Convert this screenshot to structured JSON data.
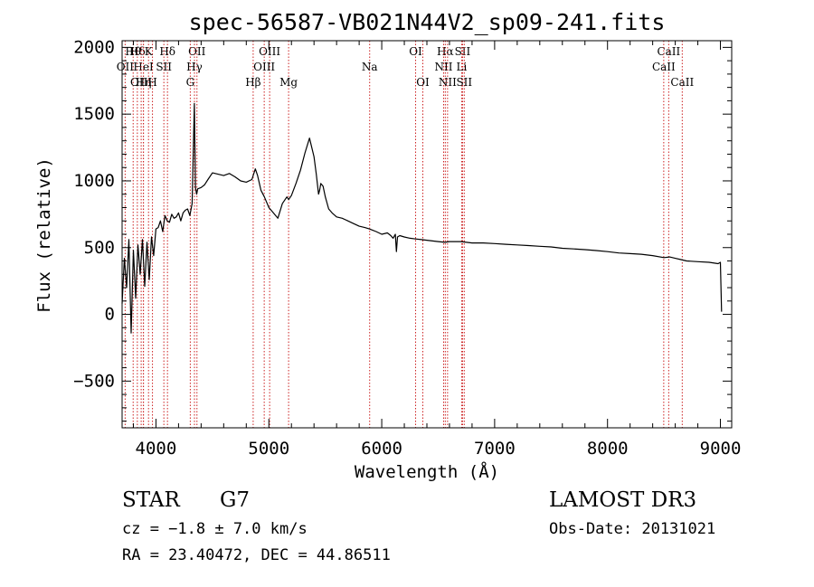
{
  "chart_data": {
    "type": "line",
    "title": "spec-56587-VB021N44V2_sp09-241.fits",
    "xlabel": "Wavelength (Å)",
    "ylabel": "Flux (relative)",
    "xlim": [
      3700,
      9100
    ],
    "ylim": [
      -850,
      2050
    ],
    "xticks": [
      {
        "value": 4000,
        "label": "4000"
      },
      {
        "value": 5000,
        "label": "5000"
      },
      {
        "value": 6000,
        "label": "6000"
      },
      {
        "value": 7000,
        "label": "7000"
      },
      {
        "value": 8000,
        "label": "8000"
      },
      {
        "value": 9000,
        "label": "9000"
      }
    ],
    "yticks": [
      {
        "value": -500,
        "label": "−500"
      },
      {
        "value": 0,
        "label": "0"
      },
      {
        "value": 500,
        "label": "500"
      },
      {
        "value": 1000,
        "label": "1000"
      },
      {
        "value": 1500,
        "label": "1500"
      },
      {
        "value": 2000,
        "label": "2000"
      }
    ],
    "series": [
      {
        "name": "spectrum",
        "x": [
          3700,
          3720,
          3740,
          3760,
          3780,
          3800,
          3820,
          3840,
          3860,
          3880,
          3900,
          3920,
          3940,
          3960,
          3980,
          4000,
          4020,
          4040,
          4060,
          4080,
          4100,
          4120,
          4140,
          4160,
          4180,
          4200,
          4220,
          4240,
          4260,
          4280,
          4300,
          4320,
          4340,
          4350,
          4360,
          4370,
          4400,
          4430,
          4460,
          4500,
          4550,
          4600,
          4650,
          4700,
          4750,
          4800,
          4850,
          4880,
          4900,
          4930,
          4960,
          5000,
          5040,
          5080,
          5120,
          5160,
          5175,
          5200,
          5240,
          5280,
          5320,
          5360,
          5400,
          5420,
          5440,
          5450,
          5460,
          5480,
          5500,
          5530,
          5560,
          5600,
          5650,
          5700,
          5750,
          5800,
          5850,
          5890,
          5950,
          6000,
          6050,
          6080,
          6100,
          6120,
          6130,
          6140,
          6160,
          6200,
          6250,
          6300,
          6350,
          6400,
          6450,
          6500,
          6560,
          6600,
          6650,
          6700,
          6750,
          6800,
          6900,
          7000,
          7100,
          7200,
          7300,
          7400,
          7500,
          7600,
          7700,
          7800,
          7900,
          8000,
          8100,
          8200,
          8300,
          8400,
          8500,
          8550,
          8600,
          8650,
          8700,
          8800,
          8900,
          8980,
          9000,
          9010
        ],
        "y": [
          80,
          420,
          200,
          560,
          -140,
          480,
          120,
          520,
          300,
          560,
          210,
          540,
          260,
          580,
          440,
          640,
          650,
          700,
          620,
          740,
          700,
          690,
          750,
          720,
          730,
          760,
          700,
          760,
          780,
          790,
          740,
          830,
          1580,
          950,
          900,
          940,
          950,
          970,
          1010,
          1060,
          1050,
          1040,
          1055,
          1030,
          1000,
          990,
          1010,
          1090,
          1040,
          930,
          880,
          800,
          760,
          720,
          830,
          880,
          860,
          890,
          980,
          1080,
          1210,
          1320,
          1180,
          1050,
          900,
          930,
          980,
          960,
          880,
          790,
          760,
          730,
          720,
          700,
          680,
          660,
          650,
          640,
          620,
          600,
          610,
          590,
          570,
          600,
          470,
          580,
          590,
          580,
          570,
          565,
          560,
          555,
          550,
          545,
          540,
          545,
          545,
          545,
          540,
          535,
          535,
          530,
          525,
          520,
          515,
          510,
          505,
          495,
          490,
          485,
          478,
          470,
          460,
          455,
          450,
          440,
          425,
          430,
          420,
          410,
          400,
          395,
          390,
          380,
          390,
          20
        ]
      }
    ],
    "line_markers": [
      {
        "label": "Hθ",
        "x": 3798,
        "row": 1
      },
      {
        "label": "Hδ",
        "x": 3835,
        "row": 1
      },
      {
        "label": "K",
        "x": 3934,
        "row": 1
      },
      {
        "label": "Hδ",
        "x": 4102,
        "row": 1
      },
      {
        "label": "OII",
        "x": 3727,
        "row": 2
      },
      {
        "label": "HeI",
        "x": 3889,
        "row": 2
      },
      {
        "label": "SII",
        "x": 4070,
        "row": 2
      },
      {
        "label": "OIII",
        "x": 3869,
        "row": 3
      },
      {
        "label": "Hη",
        "x": 3889,
        "row": 3
      },
      {
        "label": "H",
        "x": 3969,
        "row": 3
      },
      {
        "label": "OII",
        "x": 4363,
        "row": 1
      },
      {
        "label": "Hγ",
        "x": 4341,
        "row": 2
      },
      {
        "label": "G",
        "x": 4304,
        "row": 3
      },
      {
        "label": "OIII",
        "x": 5007,
        "row": 1
      },
      {
        "label": "OIII",
        "x": 4959,
        "row": 2
      },
      {
        "label": "Hβ",
        "x": 4861,
        "row": 3
      },
      {
        "label": "Mg",
        "x": 5175,
        "row": 3
      },
      {
        "label": "Na",
        "x": 5893,
        "row": 2
      },
      {
        "label": "OI",
        "x": 6300,
        "row": 1
      },
      {
        "label": "OI",
        "x": 6364,
        "row": 3
      },
      {
        "label": "Hα",
        "x": 6563,
        "row": 1
      },
      {
        "label": "SII",
        "x": 6716,
        "row": 1
      },
      {
        "label": "NII",
        "x": 6548,
        "row": 2
      },
      {
        "label": "Li",
        "x": 6708,
        "row": 2
      },
      {
        "label": "NII",
        "x": 6583,
        "row": 3
      },
      {
        "label": "SII",
        "x": 6731,
        "row": 3
      },
      {
        "label": "CaII",
        "x": 8542,
        "row": 1
      },
      {
        "label": "CaII",
        "x": 8498,
        "row": 2
      },
      {
        "label": "CaII",
        "x": 8662,
        "row": 3
      }
    ]
  },
  "info": {
    "object_type": "STAR",
    "subclass": "G7",
    "survey": "LAMOST DR3",
    "cz": "cz = −1.8 ± 7.0 km/s",
    "obs_date": "Obs-Date: 20131021",
    "radec": "RA =  23.40472, DEC =  44.86511"
  },
  "colors": {
    "spectrum": "#000000",
    "markers": "#cc2222",
    "axes": "#000000"
  }
}
